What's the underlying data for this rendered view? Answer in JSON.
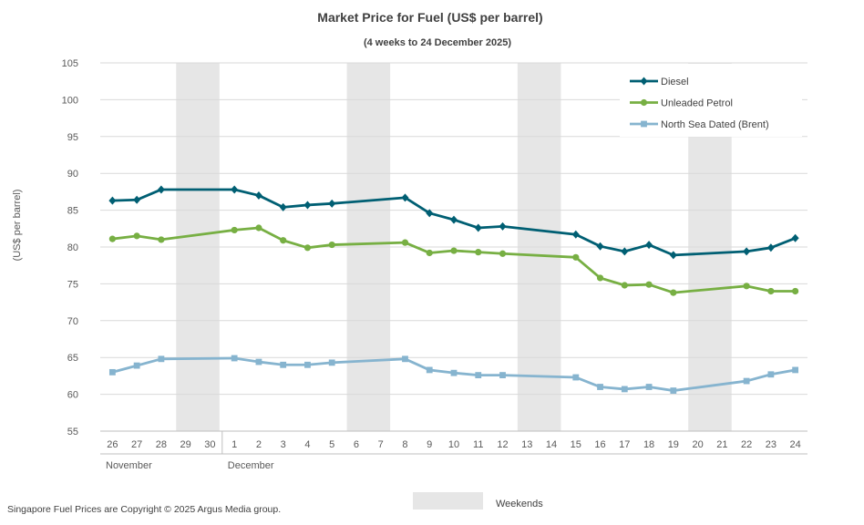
{
  "chart_data": {
    "type": "line",
    "title": "Market Price for Fuel (US$ per barrel)",
    "subtitle": "(4 weeks to 24 December 2025)",
    "ylabel": "(US$ per barrel)",
    "ylim": [
      55,
      105
    ],
    "yticks": [
      55,
      60,
      65,
      70,
      75,
      80,
      85,
      90,
      95,
      100,
      105
    ],
    "categories": [
      "26",
      "27",
      "28",
      "29",
      "30",
      "1",
      "2",
      "3",
      "4",
      "5",
      "6",
      "7",
      "8",
      "9",
      "10",
      "11",
      "12",
      "13",
      "14",
      "15",
      "16",
      "17",
      "18",
      "19",
      "20",
      "21",
      "22",
      "23",
      "24"
    ],
    "months": [
      {
        "label": "November",
        "start_index": 0,
        "end_index": 4
      },
      {
        "label": "December",
        "start_index": 5,
        "end_index": 28
      }
    ],
    "weekend_index_ranges": [
      [
        3,
        4
      ],
      [
        10,
        11
      ],
      [
        17,
        18
      ],
      [
        24,
        25
      ]
    ],
    "series": [
      {
        "name": "Diesel",
        "color": "#005F73",
        "marker": "diamond",
        "values": [
          86.3,
          86.4,
          87.8,
          null,
          null,
          87.8,
          87.0,
          85.4,
          85.7,
          85.9,
          null,
          null,
          86.7,
          84.6,
          83.7,
          82.6,
          82.8,
          null,
          null,
          81.7,
          80.1,
          79.4,
          80.3,
          78.9,
          null,
          null,
          79.4,
          79.9,
          81.2
        ]
      },
      {
        "name": "Unleaded Petrol",
        "color": "#77AF43",
        "marker": "circle",
        "values": [
          81.1,
          81.5,
          81.0,
          null,
          null,
          82.3,
          82.6,
          80.9,
          79.9,
          80.3,
          null,
          null,
          80.6,
          79.2,
          79.5,
          79.3,
          79.1,
          null,
          null,
          78.6,
          75.8,
          74.8,
          74.9,
          73.8,
          null,
          null,
          74.7,
          74.0,
          74.0
        ]
      },
      {
        "name": "North Sea Dated (Brent)",
        "color": "#86B4CF",
        "marker": "square",
        "values": [
          63.0,
          63.9,
          64.8,
          null,
          null,
          64.9,
          64.4,
          64.0,
          64.0,
          64.3,
          null,
          null,
          64.8,
          63.3,
          62.9,
          62.6,
          62.6,
          null,
          null,
          62.3,
          61.0,
          60.7,
          61.0,
          60.5,
          null,
          null,
          61.8,
          62.7,
          63.3
        ]
      }
    ],
    "weekend_legend_label": "Weekends",
    "weekend_color": "#E6E6E6",
    "grid_color": "#D9D9D9",
    "copyright": "Singapore Fuel Prices are Copyright © 2025 Argus Media group."
  }
}
